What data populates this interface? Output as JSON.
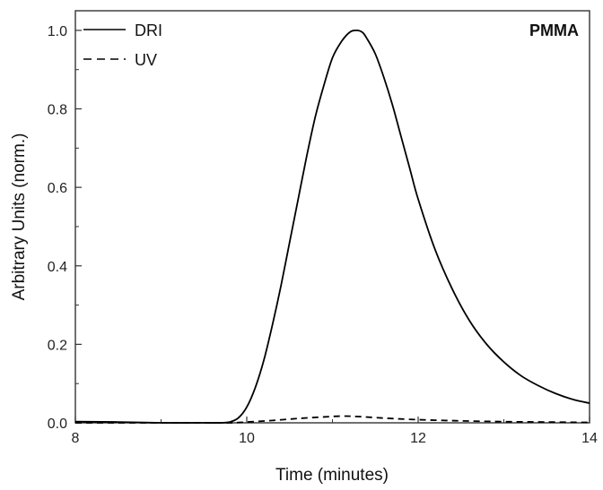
{
  "chart_data": {
    "type": "line",
    "title": "",
    "annotation": "PMMA",
    "xlabel": "Time (minutes)",
    "ylabel": "Arbitrary Units (norm.)",
    "xlim": [
      8,
      14
    ],
    "ylim": [
      0,
      1.05
    ],
    "xticks": [
      8,
      10,
      12,
      14
    ],
    "xtick_labels": [
      "8",
      "10",
      "12",
      "14"
    ],
    "yticks": [
      0.0,
      0.2,
      0.4,
      0.6,
      0.8,
      1.0
    ],
    "ytick_labels": [
      "0.0",
      "0.2",
      "0.4",
      "0.6",
      "0.8",
      "1.0"
    ],
    "grid": false,
    "legend_position": "top-left",
    "series": [
      {
        "name": "DRI",
        "style": "solid",
        "color": "#000000",
        "x": [
          8.0,
          8.5,
          9.0,
          9.5,
          9.7,
          9.8,
          9.9,
          10.0,
          10.1,
          10.2,
          10.3,
          10.4,
          10.5,
          10.6,
          10.7,
          10.8,
          10.9,
          11.0,
          11.1,
          11.2,
          11.28,
          11.35,
          11.4,
          11.5,
          11.6,
          11.7,
          11.8,
          11.9,
          12.0,
          12.2,
          12.4,
          12.6,
          12.8,
          13.0,
          13.2,
          13.4,
          13.6,
          13.8,
          14.0
        ],
        "y": [
          0.003,
          0.002,
          0.0,
          0.0,
          0.0,
          0.002,
          0.012,
          0.04,
          0.09,
          0.16,
          0.25,
          0.35,
          0.46,
          0.57,
          0.68,
          0.78,
          0.86,
          0.93,
          0.97,
          0.995,
          1.0,
          0.995,
          0.98,
          0.94,
          0.88,
          0.81,
          0.73,
          0.65,
          0.57,
          0.44,
          0.34,
          0.26,
          0.2,
          0.155,
          0.12,
          0.095,
          0.075,
          0.06,
          0.05
        ]
      },
      {
        "name": "UV",
        "style": "dashed",
        "color": "#000000",
        "x": [
          8.0,
          8.5,
          9.0,
          9.5,
          9.8,
          10.0,
          10.3,
          10.6,
          10.9,
          11.1,
          11.3,
          11.6,
          12.0,
          12.5,
          13.0,
          13.5,
          14.0
        ],
        "y": [
          0.0,
          0.0,
          0.0,
          0.0,
          0.0,
          0.002,
          0.006,
          0.011,
          0.015,
          0.017,
          0.016,
          0.012,
          0.008,
          0.005,
          0.003,
          0.002,
          0.001
        ]
      }
    ]
  }
}
